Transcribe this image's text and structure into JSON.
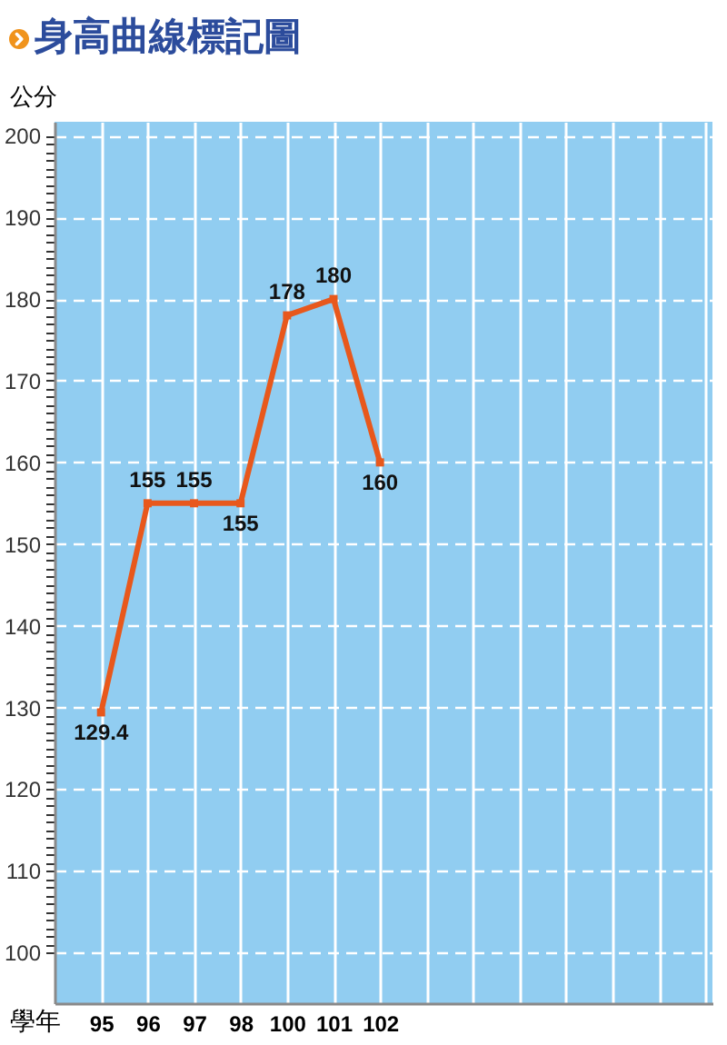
{
  "chart_data": {
    "type": "line",
    "title": "身高曲線標記圖",
    "xlabel": "學年",
    "ylabel": "公分",
    "categories": [
      "95",
      "96",
      "97",
      "98",
      "100",
      "101",
      "102",
      null,
      null,
      null,
      null,
      null,
      null,
      null
    ],
    "series": [
      {
        "color": "#e8581c",
        "values": [
          129.4,
          155,
          155,
          155,
          178,
          180,
          160,
          null,
          null,
          null,
          null,
          null,
          null,
          null
        ]
      }
    ],
    "ylim": [
      93.8,
      201.7
    ],
    "yticks": [
      100,
      {
        "value": 101,
        "label": null
      },
      {
        "value": 102,
        "label": null
      },
      {
        "value": 103,
        "label": null
      },
      {
        "value": 104,
        "label": null
      },
      {
        "value": 105,
        "label": null
      },
      {
        "value": 106,
        "label": null
      },
      {
        "value": 107,
        "label": null
      },
      {
        "value": 108,
        "label": null
      },
      {
        "value": 109,
        "label": null
      },
      110,
      {
        "value": 111,
        "label": null
      },
      {
        "value": 112,
        "label": null
      },
      {
        "value": 113,
        "label": null
      },
      {
        "value": 114,
        "label": null
      },
      {
        "value": 115,
        "label": null
      },
      {
        "value": 116,
        "label": null
      },
      {
        "value": 117,
        "label": null
      },
      {
        "value": 118,
        "label": null
      },
      {
        "value": 119,
        "label": null
      },
      120,
      {
        "value": 121,
        "label": null
      },
      {
        "value": 122,
        "label": null
      },
      {
        "value": 123,
        "label": null
      },
      {
        "value": 124,
        "label": null
      },
      {
        "value": 125,
        "label": null
      },
      {
        "value": 126,
        "label": null
      },
      {
        "value": 127,
        "label": null
      },
      {
        "value": 128,
        "label": null
      },
      {
        "value": 129,
        "label": null
      },
      130,
      {
        "value": 131,
        "label": null
      },
      {
        "value": 132,
        "label": null
      },
      {
        "value": 133,
        "label": null
      },
      {
        "value": 134,
        "label": null
      },
      {
        "value": 135,
        "label": null
      },
      {
        "value": 136,
        "label": null
      },
      {
        "value": 137,
        "label": null
      },
      {
        "value": 138,
        "label": null
      },
      {
        "value": 139,
        "label": null
      },
      140,
      {
        "value": 141,
        "label": null
      },
      {
        "value": 142,
        "label": null
      },
      {
        "value": 143,
        "label": null
      },
      {
        "value": 144,
        "label": null
      },
      {
        "value": 145,
        "label": null
      },
      {
        "value": 146,
        "label": null
      },
      {
        "value": 147,
        "label": null
      },
      {
        "value": 148,
        "label": null
      },
      {
        "value": 149,
        "label": null
      },
      150,
      {
        "value": 151,
        "label": null
      },
      {
        "value": 152,
        "label": null
      },
      {
        "value": 153,
        "label": null
      },
      {
        "value": 154,
        "label": null
      },
      {
        "value": 155,
        "label": null
      },
      {
        "value": 156,
        "label": null
      },
      {
        "value": 157,
        "label": null
      },
      {
        "value": 158,
        "label": null
      },
      {
        "value": 159,
        "label": null
      },
      160,
      {
        "value": 161,
        "label": null
      },
      {
        "value": 162,
        "label": null
      },
      {
        "value": 163,
        "label": null
      },
      {
        "value": 164,
        "label": null
      },
      {
        "value": 165,
        "label": null
      },
      {
        "value": 166,
        "label": null
      },
      {
        "value": 167,
        "label": null
      },
      {
        "value": 168,
        "label": null
      },
      {
        "value": 169,
        "label": null
      },
      170,
      {
        "value": 171,
        "label": null
      },
      {
        "value": 172,
        "label": null
      },
      {
        "value": 173,
        "label": null
      },
      {
        "value": 174,
        "label": null
      },
      {
        "value": 175,
        "label": null
      },
      {
        "value": 176,
        "label": null
      },
      {
        "value": 177,
        "label": null
      },
      {
        "value": 178,
        "label": null
      },
      {
        "value": 179,
        "label": null
      },
      180,
      {
        "value": 181,
        "label": null
      },
      {
        "value": 182,
        "label": null
      },
      {
        "value": 183,
        "label": null
      },
      {
        "value": 184,
        "label": null
      },
      {
        "value": 185,
        "label": null
      },
      {
        "value": 186,
        "label": null
      },
      {
        "value": 187,
        "label": null
      },
      {
        "value": 188,
        "label": null
      },
      {
        "value": 189,
        "label": null
      },
      190,
      {
        "value": 191,
        "label": null
      },
      {
        "value": 192,
        "label": null
      },
      {
        "value": 193,
        "label": null
      },
      {
        "value": 194,
        "label": null
      },
      {
        "value": 195,
        "label": null
      },
      {
        "value": 196,
        "label": null
      },
      {
        "value": 197,
        "label": null
      },
      {
        "value": 198,
        "label": null
      },
      {
        "value": 199,
        "label": null
      },
      200
    ],
    "grid": true,
    "marker": "square",
    "line_style": "solid",
    "data_labels": true
  }
}
